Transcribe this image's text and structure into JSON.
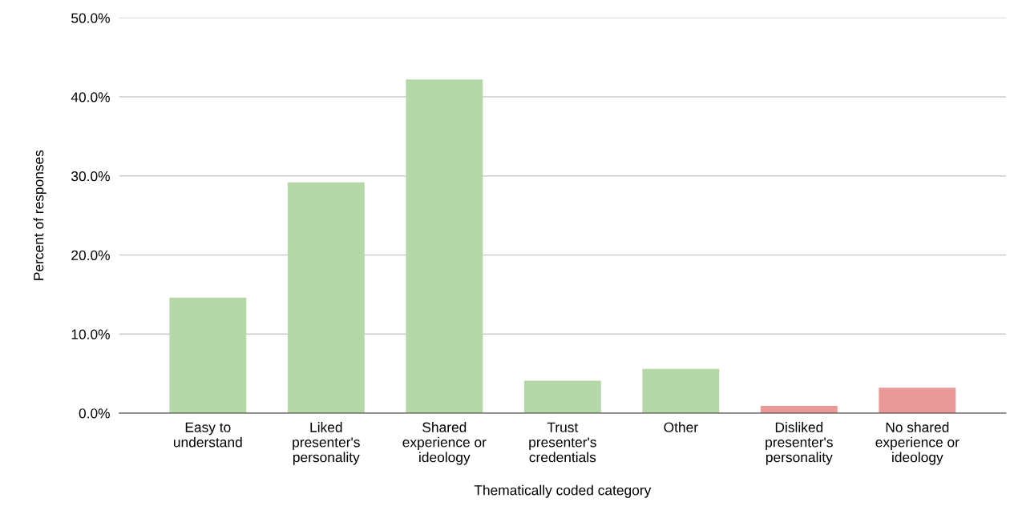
{
  "chart_data": {
    "type": "bar",
    "categories": [
      "Easy to\nunderstand",
      "Liked\npresenter's\npersonality",
      "Shared\nexperience or\nideology",
      "Trust\npresenter's\ncredentials",
      "Other",
      "Disliked\npresenter's\npersonality",
      "No shared\nexperience or\nideology"
    ],
    "values": [
      14.6,
      29.2,
      42.2,
      4.1,
      5.6,
      0.9,
      3.2
    ],
    "colors": [
      "#b6d7a8",
      "#b6d7a8",
      "#b6d7a8",
      "#b6d7a8",
      "#b6d7a8",
      "#ea9999",
      "#ea9999"
    ],
    "xlabel": "Thematically coded category",
    "ylabel": "Percent of responses",
    "ylim": [
      0,
      50
    ],
    "yticks": [
      {
        "value": 0,
        "label": "0.0%"
      },
      {
        "value": 10,
        "label": "10.0%"
      },
      {
        "value": 20,
        "label": "20.0%"
      },
      {
        "value": 30,
        "label": "30.0%"
      },
      {
        "value": 40,
        "label": "40.0%"
      },
      {
        "value": 50,
        "label": "50.0%"
      }
    ],
    "grid": "y"
  }
}
